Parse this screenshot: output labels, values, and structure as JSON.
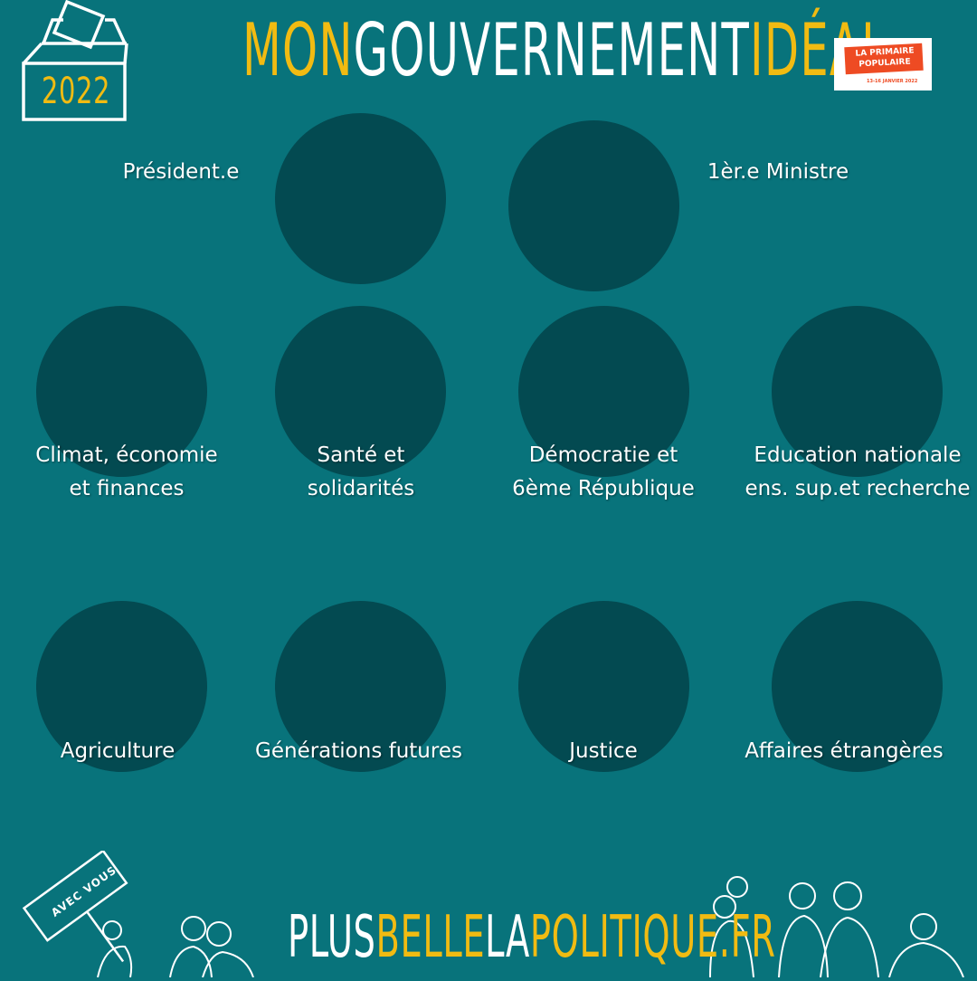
{
  "header": {
    "title_mon": "MON",
    "title_gouvernement": "GOUVERNEMENT",
    "title_ideal": "IDÉAL",
    "ballot_year": "2022",
    "badge": {
      "line1": "LA PRIMAIRE",
      "line2": "POPULAIRE",
      "dates": "13-16 JANVIER 2022"
    }
  },
  "roles": {
    "president": "Président.e",
    "prime_minister": "1èr.e Ministre"
  },
  "ministries": [
    {
      "line1": "Climat, économie",
      "line2": "et finances"
    },
    {
      "line1": "Santé et",
      "line2": "solidarités"
    },
    {
      "line1": "Démocratie et",
      "line2": "6ème République"
    },
    {
      "line1": "Education nationale",
      "line2": "ens. sup.et recherche"
    },
    {
      "line1": "Agriculture"
    },
    {
      "line1": "Générations futures"
    },
    {
      "line1": "Justice"
    },
    {
      "line1": "Affaires étrangères"
    }
  ],
  "footer": {
    "plus": "PLUS",
    "belle": "BELLE",
    "la": "LA",
    "politique": "POLITIQUE.FR",
    "sign": "AVEC VOUS"
  },
  "colors": {
    "background": "#08737b",
    "circle": "#034a51",
    "accent": "#f1bb12",
    "badge": "#ee4b23"
  }
}
